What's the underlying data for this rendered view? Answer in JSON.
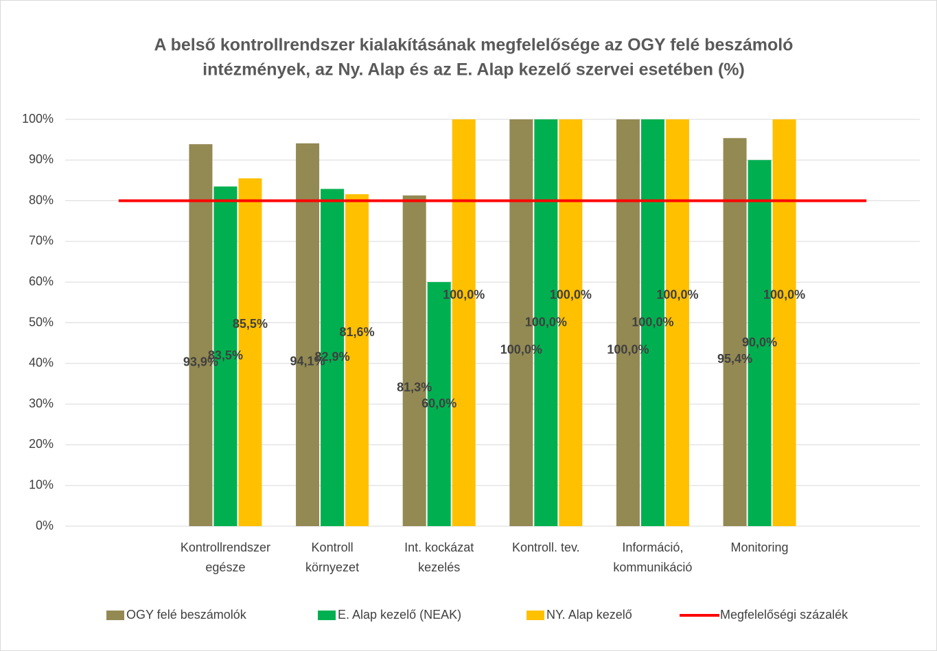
{
  "chart_data": {
    "type": "bar",
    "title": [
      "A belső kontrollrendszer kialakításának megfelelősége az OGY felé beszámoló",
      "intézmények, az Ny. Alap és az E. Alap kezelő szervei esetében (%)"
    ],
    "categories": [
      null,
      [
        "Kontrollrendszer",
        "egésze"
      ],
      [
        "Kontroll",
        "környezet"
      ],
      [
        "Int. kockázat",
        "kezelés"
      ],
      [
        "Kontroll. tev."
      ],
      [
        "Információ,",
        "kommunikáció"
      ],
      [
        "Monitoring"
      ],
      null
    ],
    "series": [
      {
        "name": "OGY felé beszámolók",
        "color": "#938953",
        "values": [
          null,
          93.9,
          94.1,
          81.3,
          100,
          100,
          95.4,
          null
        ],
        "value_labels": [
          null,
          "93,9%",
          "94,1%",
          "81,3%",
          "100,0%",
          "100,0%",
          "95,4%",
          null
        ]
      },
      {
        "name": "E. Alap kezelő (NEAK)",
        "color": "#00b050",
        "values": [
          null,
          83.5,
          82.9,
          60,
          100,
          100,
          90,
          null
        ],
        "value_labels": [
          null,
          "83,5%",
          "82,9%",
          "60,0%",
          "100,0%",
          "100,0%",
          "90,0%",
          null
        ]
      },
      {
        "name": "NY. Alap kezelő",
        "color": "#ffc000",
        "values": [
          null,
          85.5,
          81.6,
          100,
          100,
          100,
          100,
          null
        ],
        "value_labels": [
          null,
          "85,5%",
          "81,6%",
          "100,0%",
          "100,0%",
          "100,0%",
          "100,0%",
          null
        ]
      },
      {
        "name": "Megfelelőségi százalék",
        "color": "#ff0000",
        "type": "line",
        "values": [
          80,
          80,
          80,
          80,
          80,
          80,
          80,
          80
        ]
      }
    ],
    "ylim": [
      0,
      100
    ],
    "yticks": [
      {
        "value": 0,
        "label": "0%"
      },
      {
        "value": 10,
        "label": "10%"
      },
      {
        "value": 20,
        "label": "20%"
      },
      {
        "value": 30,
        "label": "30%"
      },
      {
        "value": 40,
        "label": "40%"
      },
      {
        "value": 50,
        "label": "50%"
      },
      {
        "value": 60,
        "label": "60%"
      },
      {
        "value": 70,
        "label": "70%"
      },
      {
        "value": 80,
        "label": "80%"
      },
      {
        "value": 90,
        "label": "90%"
      },
      {
        "value": 100,
        "label": "100%"
      }
    ],
    "grid": true,
    "legend": "bottom"
  }
}
